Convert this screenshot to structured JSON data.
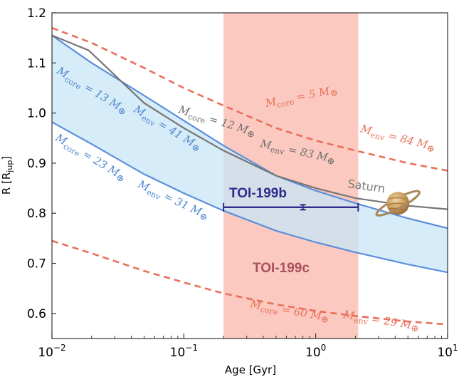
{
  "chart_data": {
    "type": "line",
    "xlabel": "Age [Gyr]",
    "ylabel": "R [R",
    "ylabel_sub": "jup",
    "ylabel_close": "]",
    "xscale": "log",
    "xlim": [
      0.01,
      10
    ],
    "ylim": [
      0.55,
      1.2
    ],
    "grid": false,
    "x_ticks": [
      {
        "value": 0.01,
        "base": "10",
        "exp": "−2"
      },
      {
        "value": 0.1,
        "base": "10",
        "exp": "−1"
      },
      {
        "value": 1,
        "base": "10",
        "exp": "0"
      },
      {
        "value": 10,
        "base": "10",
        "exp": "1"
      }
    ],
    "y_ticks": [
      "0.6",
      "0.7",
      "0.8",
      "0.9",
      "1.0",
      "1.1",
      "1.2"
    ],
    "shaded_age_range": {
      "x": [
        0.2,
        2.1
      ],
      "color": "#f9b4a8"
    },
    "blue_band_color": "#c8e6f7",
    "series": [
      {
        "style": "dashed",
        "color": "#e8705a",
        "x": [
          0.01,
          0.02,
          0.05,
          0.1,
          0.2,
          0.5,
          1,
          2,
          5,
          10
        ],
        "y": [
          1.17,
          1.14,
          1.09,
          1.05,
          1.015,
          0.97,
          0.945,
          0.925,
          0.9,
          0.885
        ]
      },
      {
        "style": "dashed",
        "color": "#e8705a",
        "x": [
          0.01,
          0.02,
          0.05,
          0.1,
          0.2,
          0.5,
          1,
          2,
          5,
          10
        ],
        "y": [
          0.745,
          0.72,
          0.685,
          0.662,
          0.64,
          0.618,
          0.605,
          0.595,
          0.584,
          0.578
        ]
      },
      {
        "style": "solid",
        "color": "#5b8fdb",
        "x": [
          0.01,
          0.02,
          0.05,
          0.1,
          0.2,
          0.5,
          1,
          2,
          5,
          10
        ],
        "y": [
          1.155,
          1.1,
          1.035,
          0.985,
          0.935,
          0.875,
          0.845,
          0.82,
          0.79,
          0.77
        ]
      },
      {
        "style": "solid",
        "color": "#5b8fdb",
        "x": [
          0.01,
          0.02,
          0.05,
          0.1,
          0.2,
          0.5,
          1,
          2,
          5,
          10
        ],
        "y": [
          0.982,
          0.938,
          0.878,
          0.84,
          0.805,
          0.765,
          0.742,
          0.722,
          0.698,
          0.682
        ]
      },
      {
        "name": "Saturn",
        "style": "solid",
        "color": "#757575",
        "x": [
          0.01,
          0.019,
          0.05,
          0.1,
          0.2,
          0.5,
          1,
          2,
          5,
          10
        ],
        "y": [
          1.155,
          1.125,
          1.02,
          0.97,
          0.925,
          0.875,
          0.85,
          0.83,
          0.815,
          0.808
        ]
      }
    ],
    "errorbar": {
      "x": 0.8,
      "y": 0.812,
      "xerr": [
        0.2,
        2.1
      ],
      "yerr": 0.005,
      "color": "#2c2c8c"
    },
    "saturn_marker": {
      "x": 4.2,
      "y": 0.82
    }
  },
  "annotations": {
    "red_top": {
      "m1": "M",
      "s1": "core",
      "t1": " = 5 M",
      "sym1": "⊕",
      "m2": "M",
      "s2": "env",
      "t2": " = 84 M",
      "sym2": "⊕"
    },
    "red_bottom": {
      "m1": "M",
      "s1": "core",
      "t1": " = 60 M",
      "sym1": "⊕",
      "m2": "M",
      "s2": "env",
      "t2": " = 29 M",
      "sym2": "⊕"
    },
    "blue_top": {
      "m1": "M",
      "s1": "core",
      "t1": " = 13 M",
      "sym1": "⊕",
      "m2": "M",
      "s2": "env",
      "t2": " = 41 M",
      "sym2": "⊕"
    },
    "blue_bottom": {
      "m1": "M",
      "s1": "core",
      "t1": " = 23 M",
      "sym1": "⊕",
      "m2": "M",
      "s2": "env",
      "t2": " = 31 M",
      "sym2": "⊕"
    },
    "saturn_curve": {
      "m1": "M",
      "s1": "core",
      "t1": " = 12 M",
      "sym1": "⊕",
      "m2": "M",
      "s2": "env",
      "t2": " = 83 M",
      "sym2": "⊕"
    },
    "saturn_label": "Saturn",
    "toi_b": "TOI-199b",
    "toi_c": "TOI-199c"
  },
  "colors": {
    "red": "#e8705a",
    "blue": "#4f86cc",
    "gray": "#757575",
    "toi_b": "#2c2c8c",
    "toi_c": "#a8505a"
  }
}
